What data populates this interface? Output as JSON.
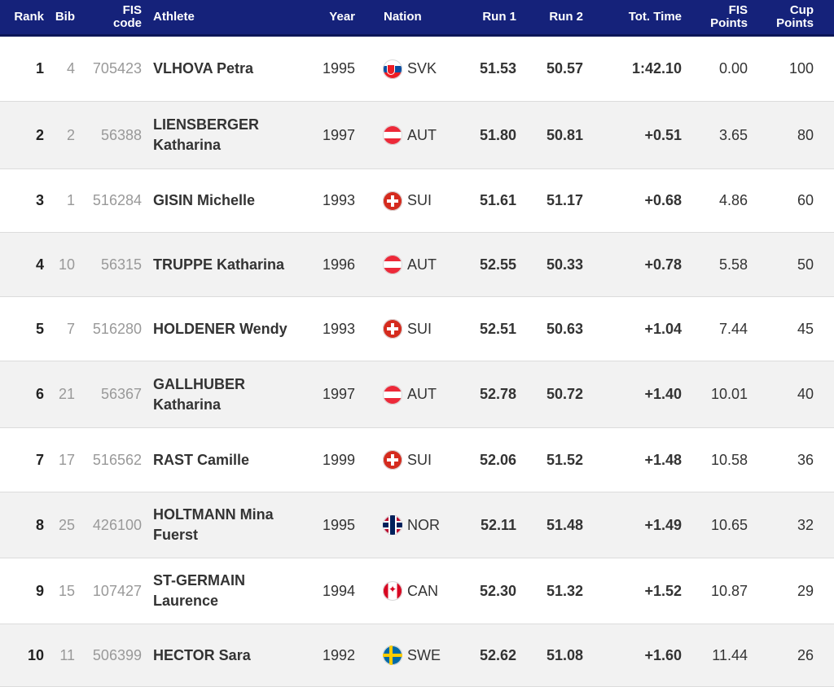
{
  "columns": {
    "rank": "Rank",
    "bib": "Bib",
    "fis_code_1": "FIS",
    "fis_code_2": "code",
    "athlete": "Athlete",
    "year": "Year",
    "nation": "Nation",
    "run1": "Run 1",
    "run2": "Run 2",
    "tot_time": "Tot. Time",
    "fis_points_1": "FIS",
    "fis_points_2": "Points",
    "cup_points_1": "Cup",
    "cup_points_2": "Points"
  },
  "header_color": "#15227a",
  "rows": [
    {
      "rank": "1",
      "bib": "4",
      "fis": "705423",
      "name1": "VLHOVA Petra",
      "name2": "",
      "year": "1995",
      "nation": "SVK",
      "flag": "svk-flag-icon",
      "run1": "51.53",
      "run2": "50.57",
      "tot": "1:42.10",
      "fispts": "0.00",
      "cup": "100"
    },
    {
      "rank": "2",
      "bib": "2",
      "fis": "56388",
      "name1": "LIENSBERGER",
      "name2": "Katharina",
      "year": "1997",
      "nation": "AUT",
      "flag": "aut-flag-icon",
      "run1": "51.80",
      "run2": "50.81",
      "tot": "+0.51",
      "fispts": "3.65",
      "cup": "80"
    },
    {
      "rank": "3",
      "bib": "1",
      "fis": "516284",
      "name1": "GISIN Michelle",
      "name2": "",
      "year": "1993",
      "nation": "SUI",
      "flag": "sui-flag-icon",
      "run1": "51.61",
      "run2": "51.17",
      "tot": "+0.68",
      "fispts": "4.86",
      "cup": "60"
    },
    {
      "rank": "4",
      "bib": "10",
      "fis": "56315",
      "name1": "TRUPPE Katharina",
      "name2": "",
      "year": "1996",
      "nation": "AUT",
      "flag": "aut-flag-icon",
      "run1": "52.55",
      "run2": "50.33",
      "tot": "+0.78",
      "fispts": "5.58",
      "cup": "50"
    },
    {
      "rank": "5",
      "bib": "7",
      "fis": "516280",
      "name1": "HOLDENER Wendy",
      "name2": "",
      "year": "1993",
      "nation": "SUI",
      "flag": "sui-flag-icon",
      "run1": "52.51",
      "run2": "50.63",
      "tot": "+1.04",
      "fispts": "7.44",
      "cup": "45"
    },
    {
      "rank": "6",
      "bib": "21",
      "fis": "56367",
      "name1": "GALLHUBER",
      "name2": "Katharina",
      "year": "1997",
      "nation": "AUT",
      "flag": "aut-flag-icon",
      "run1": "52.78",
      "run2": "50.72",
      "tot": "+1.40",
      "fispts": "10.01",
      "cup": "40"
    },
    {
      "rank": "7",
      "bib": "17",
      "fis": "516562",
      "name1": "RAST Camille",
      "name2": "",
      "year": "1999",
      "nation": "SUI",
      "flag": "sui-flag-icon",
      "run1": "52.06",
      "run2": "51.52",
      "tot": "+1.48",
      "fispts": "10.58",
      "cup": "36"
    },
    {
      "rank": "8",
      "bib": "25",
      "fis": "426100",
      "name1": "HOLTMANN Mina",
      "name2": "Fuerst",
      "year": "1995",
      "nation": "NOR",
      "flag": "nor-flag-icon",
      "run1": "52.11",
      "run2": "51.48",
      "tot": "+1.49",
      "fispts": "10.65",
      "cup": "32"
    },
    {
      "rank": "9",
      "bib": "15",
      "fis": "107427",
      "name1": "ST-GERMAIN",
      "name2": "Laurence",
      "year": "1994",
      "nation": "CAN",
      "flag": "can-flag-icon",
      "run1": "52.30",
      "run2": "51.32",
      "tot": "+1.52",
      "fispts": "10.87",
      "cup": "29"
    },
    {
      "rank": "10",
      "bib": "11",
      "fis": "506399",
      "name1": "HECTOR Sara",
      "name2": "",
      "year": "1992",
      "nation": "SWE",
      "flag": "swe-flag-icon",
      "run1": "52.62",
      "run2": "51.08",
      "tot": "+1.60",
      "fispts": "11.44",
      "cup": "26"
    }
  ]
}
